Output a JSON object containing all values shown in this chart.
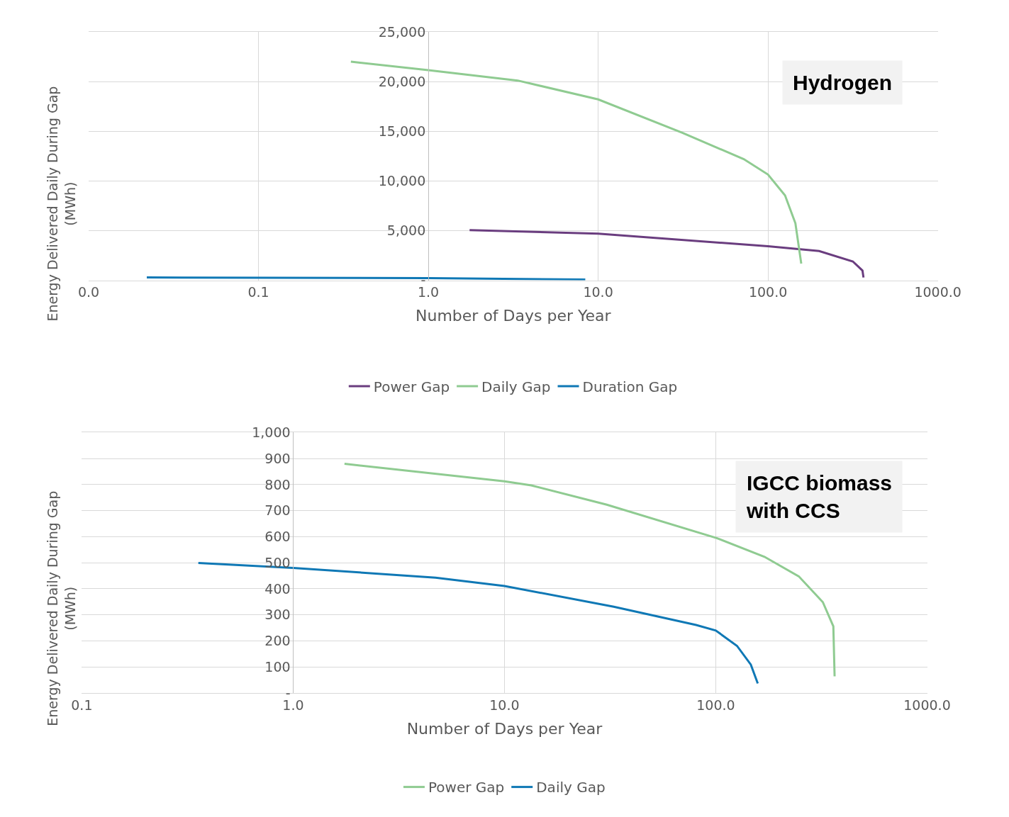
{
  "chart_data": [
    {
      "type": "line",
      "xlabel": "Number of Days per Year",
      "ylabel": "Energy Delivered Daily During Gap (MWh)",
      "log": "x",
      "grid": true,
      "legend": "bottom",
      "marker": "none",
      "line_style": "solid",
      "annotations": [
        "Hydrogen"
      ],
      "xlim": [
        0.01,
        1000
      ],
      "xticks": [
        {
          "value": 0.01,
          "label": "0.0"
        },
        {
          "value": 0.1,
          "label": "0.1"
        },
        {
          "value": 1,
          "label": "1.0"
        },
        {
          "value": 10,
          "label": "10.0"
        },
        {
          "value": 100,
          "label": "100.0"
        },
        {
          "value": 1000,
          "label": "1000.0"
        }
      ],
      "ylim": [
        0,
        25000
      ],
      "yticks": [
        {
          "value": 0,
          "label": "-"
        },
        {
          "value": 5000,
          "label": "5,000"
        },
        {
          "value": 10000,
          "label": "10,000"
        },
        {
          "value": 15000,
          "label": "15,000"
        },
        {
          "value": 20000,
          "label": "20,000"
        },
        {
          "value": 25000,
          "label": "25,000"
        }
      ],
      "series": [
        {
          "name": "Power Gap",
          "color": "#6a3d7f",
          "x": [
            1.75,
            10,
            100,
            200,
            316,
            360,
            365
          ],
          "values": [
            5040,
            4690,
            3430,
            2940,
            1890,
            980,
            280
          ]
        },
        {
          "name": "Daily Gap",
          "color": "#8fcb91",
          "x": [
            0.35,
            1,
            3.36,
            10,
            31.3,
            72,
            100,
            126,
            145,
            157
          ],
          "values": [
            22000,
            21150,
            20100,
            18200,
            14850,
            12190,
            10640,
            8540,
            5740,
            1680
          ]
        },
        {
          "name": "Duration Gap",
          "color": "#0f78b5",
          "x": [
            0.022,
            1,
            8.4
          ],
          "values": [
            280,
            210,
            70
          ]
        }
      ]
    },
    {
      "type": "line",
      "xlabel": "Number of Days per Year",
      "ylabel": "Energy Delivered Daily During Gap (MWh)",
      "log": "x",
      "grid": true,
      "legend": "bottom",
      "marker": "none",
      "line_style": "solid",
      "annotations": [
        "IGCC biomass with CCS"
      ],
      "xlim": [
        0.1,
        1000
      ],
      "xticks": [
        {
          "value": 0.1,
          "label": "0.1"
        },
        {
          "value": 1,
          "label": "1.0"
        },
        {
          "value": 10,
          "label": "10.0"
        },
        {
          "value": 100,
          "label": "100.0"
        },
        {
          "value": 1000,
          "label": "1000.0"
        }
      ],
      "ylim": [
        0,
        1000
      ],
      "yticks": [
        {
          "value": 0,
          "label": "-"
        },
        100,
        200,
        300,
        400,
        500,
        600,
        700,
        800,
        900,
        {
          "value": 1000,
          "label": "1,000"
        }
      ],
      "series": [
        {
          "name": "Power Gap",
          "color": "#8fcb91",
          "x": [
            1.75,
            10,
            13.4,
            30.5,
            101,
            170,
            247,
            321,
            360,
            365
          ],
          "values": [
            880,
            813,
            797,
            723,
            595,
            523,
            448,
            349,
            256,
            64
          ]
        },
        {
          "name": "Daily Gap",
          "color": "#0f78b5",
          "x": [
            0.356,
            1,
            4.72,
            10,
            32.9,
            80.7,
            100,
            126,
            146.5,
            158
          ],
          "values": [
            499,
            480,
            443,
            411,
            331,
            261,
            240,
            181,
            109,
            37
          ]
        }
      ]
    }
  ]
}
